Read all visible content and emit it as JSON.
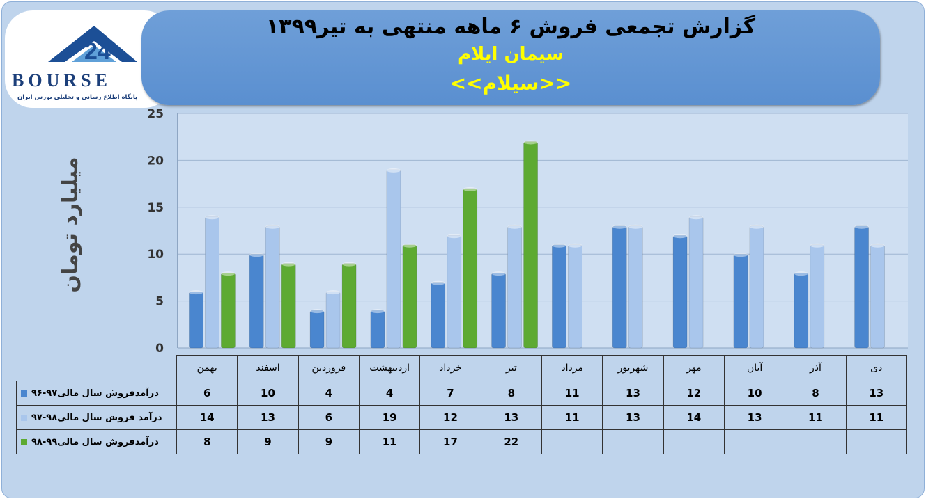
{
  "header": {
    "title": "گزارش تجمعی فروش ۶ ماهه منتهی به تیر۱۳۹۹",
    "company": "سیمان ایلام",
    "symbol": "<<سیلام>>"
  },
  "logo": {
    "word": "BOURSE",
    "subtitle": "پایگاه اطلاع رسانی و تحلیلی بورس ایران"
  },
  "colors": {
    "series1": "#4a86cf",
    "series2": "#a9c6ec",
    "series3": "#5daa32",
    "banner": "#5a8fd0"
  },
  "chart_data": {
    "type": "bar",
    "ylabel": "میلیارد تومان",
    "ylim": [
      0,
      25
    ],
    "yticks": [
      "0",
      "5",
      "10",
      "15",
      "20",
      "25"
    ],
    "categories": [
      "بهمن",
      "اسفند",
      "فروردین",
      "اردیبهشت",
      "خرداد",
      "تیر",
      "مرداد",
      "شهریور",
      "مهر",
      "آبان",
      "آذر",
      "دی"
    ],
    "series": [
      {
        "name": "درآمدفروش سال مالی۹۷-۹۶",
        "values": [
          6,
          10,
          4,
          4,
          7,
          8,
          11,
          13,
          12,
          10,
          8,
          13
        ]
      },
      {
        "name": "درآمد فروش سال مالی۹۸-۹۷",
        "values": [
          14,
          13,
          6,
          19,
          12,
          13,
          11,
          13,
          14,
          13,
          11,
          11
        ]
      },
      {
        "name": "درآمدفروش سال مالی۹۹-۹۸",
        "values": [
          8,
          9,
          9,
          11,
          17,
          22,
          null,
          null,
          null,
          null,
          null,
          null
        ]
      }
    ],
    "legend": "bottom-table",
    "grid": true
  }
}
